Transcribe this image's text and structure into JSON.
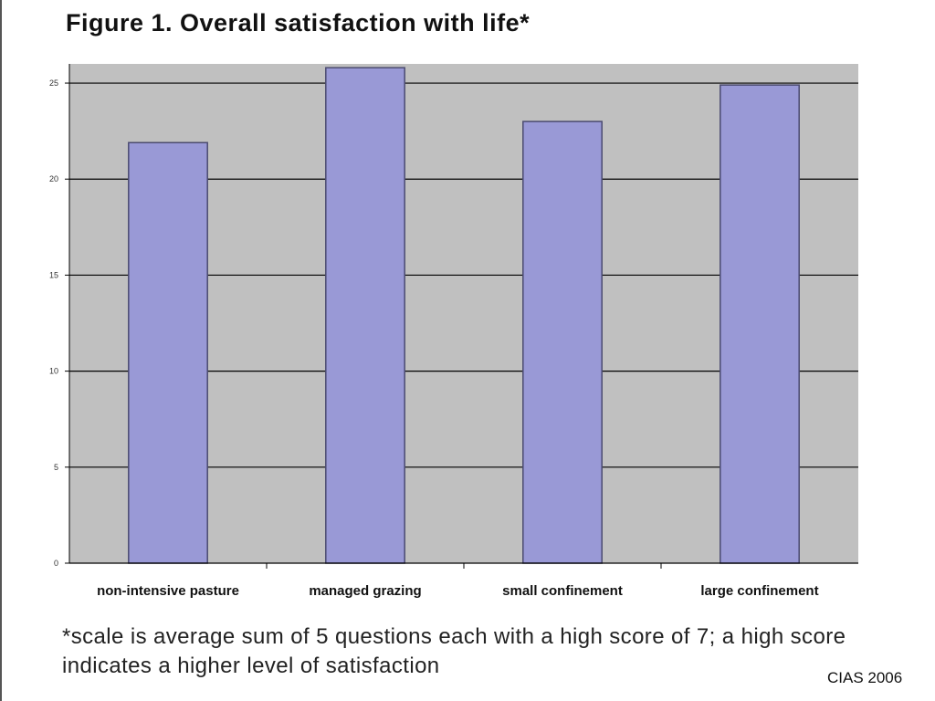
{
  "page": {
    "title": "Figure 1. Overall satisfaction with life*",
    "footnote": "*scale is average sum of 5 questions each with a high score of 7; a high score indicates a higher level of satisfaction",
    "credit": "CIAS 2006"
  },
  "chart_data": {
    "type": "bar",
    "title": "",
    "xlabel": "",
    "ylabel": "",
    "categories": [
      "non-intensive pasture",
      "managed grazing",
      "small confinement",
      "large confinement"
    ],
    "values": [
      21.9,
      25.8,
      23.0,
      24.9
    ],
    "ylim": [
      0,
      26
    ],
    "yticks": [
      0,
      5,
      10,
      15,
      20,
      25
    ],
    "ytick_labels": [
      "0",
      "5",
      "10",
      "15",
      "20",
      "25"
    ],
    "grid": true,
    "legend": "none",
    "colors": {
      "bar": "#9999d6",
      "bar_edge": "#4a4a70",
      "plot_bg": "#c0c0c0",
      "grid": "#000000"
    }
  }
}
